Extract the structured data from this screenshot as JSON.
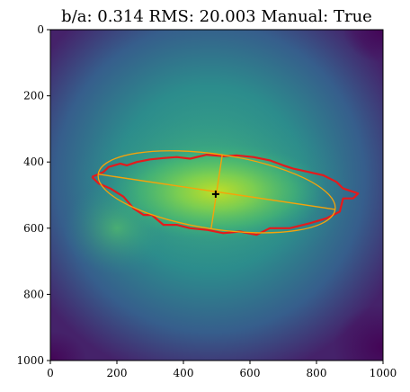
{
  "chart_data": {
    "type": "heatmap",
    "title": "b/a: 0.314  RMS: 20.003  Manual: True",
    "xlabel": "",
    "ylabel": "",
    "xlim": [
      0,
      1000
    ],
    "ylim": [
      1000,
      0
    ],
    "x_ticks": [
      "0",
      "200",
      "400",
      "600",
      "800",
      "1000"
    ],
    "y_ticks": [
      "0",
      "200",
      "400",
      "600",
      "800",
      "1000"
    ],
    "colormap": "viridis",
    "background_color": "#440154",
    "colors": {
      "contour": "#e41a1c",
      "ellipse": "#f5a30a",
      "center_marker": "#000000"
    },
    "ellipse": {
      "center": [
        500,
        490
      ],
      "semi_major": 360,
      "semi_minor": 113,
      "angle_deg": 8.5
    },
    "center_marker": [
      497,
      497
    ],
    "contour_points": [
      [
        125,
        445
      ],
      [
        160,
        430
      ],
      [
        175,
        415
      ],
      [
        210,
        405
      ],
      [
        230,
        410
      ],
      [
        260,
        400
      ],
      [
        300,
        392
      ],
      [
        340,
        388
      ],
      [
        380,
        385
      ],
      [
        420,
        390
      ],
      [
        470,
        378
      ],
      [
        520,
        382
      ],
      [
        560,
        380
      ],
      [
        610,
        385
      ],
      [
        660,
        395
      ],
      [
        700,
        410
      ],
      [
        730,
        420
      ],
      [
        775,
        430
      ],
      [
        820,
        440
      ],
      [
        860,
        460
      ],
      [
        880,
        480
      ],
      [
        925,
        495
      ],
      [
        910,
        510
      ],
      [
        880,
        510
      ],
      [
        870,
        550
      ],
      [
        830,
        570
      ],
      [
        780,
        585
      ],
      [
        720,
        600
      ],
      [
        660,
        600
      ],
      [
        620,
        620
      ],
      [
        570,
        610
      ],
      [
        520,
        615
      ],
      [
        470,
        605
      ],
      [
        420,
        600
      ],
      [
        380,
        590
      ],
      [
        340,
        590
      ],
      [
        305,
        560
      ],
      [
        280,
        560
      ],
      [
        250,
        540
      ],
      [
        220,
        505
      ],
      [
        180,
        480
      ],
      [
        145,
        465
      ],
      [
        125,
        445
      ]
    ]
  }
}
